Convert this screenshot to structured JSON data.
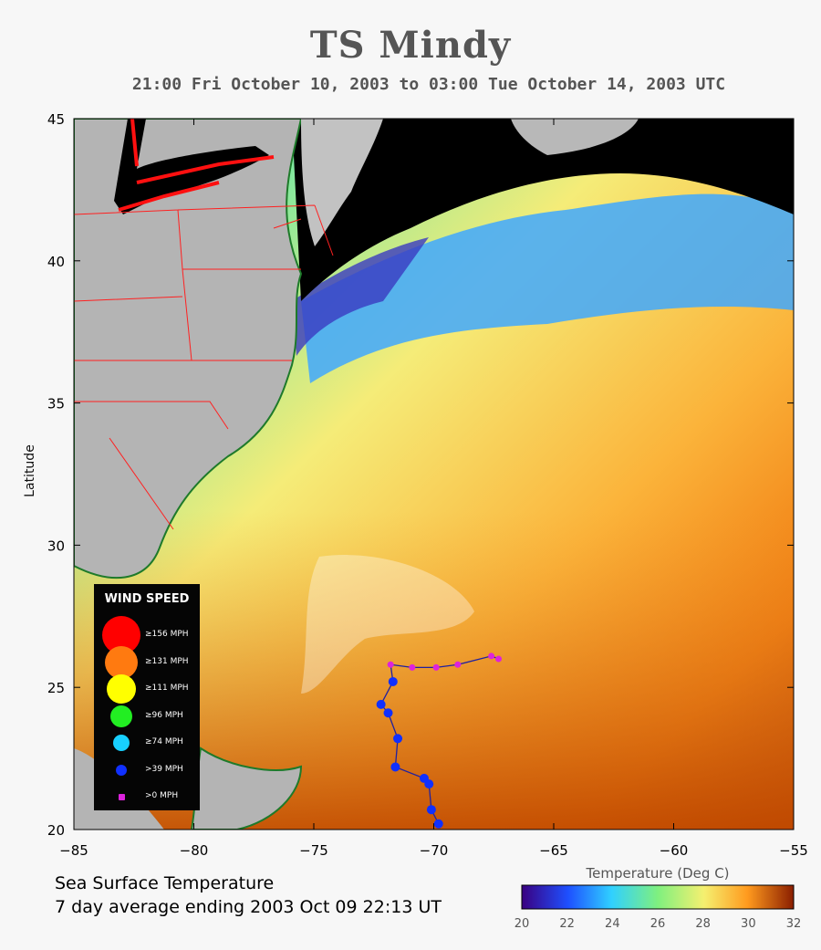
{
  "header": {
    "title": "TS Mindy",
    "subtitle": "21:00 Fri October 10, 2003 to 03:00 Tue October 14, 2003  UTC"
  },
  "axes": {
    "y_title": "Latitude",
    "lon_ticks": [
      "−85",
      "−80",
      "−75",
      "−70",
      "−65",
      "−60",
      "−55"
    ],
    "lat_ticks": [
      "45",
      "40",
      "35",
      "30",
      "25",
      "20"
    ],
    "lon_range": [
      -85,
      -55
    ],
    "lat_range": [
      20,
      45
    ]
  },
  "footer": {
    "line1": "Sea Surface Temperature",
    "line2": "7 day average ending 2003 Oct 09 22:13 UT"
  },
  "colorbar": {
    "title": "Temperature (Deg C)",
    "ticks": [
      "20",
      "22",
      "24",
      "26",
      "28",
      "30",
      "32"
    ],
    "range": [
      20,
      32
    ],
    "colors": [
      "#3a0080",
      "#1e50ff",
      "#30d0ff",
      "#7ff07f",
      "#f5f070",
      "#ff9a1e",
      "#8a1e00"
    ]
  },
  "legend": {
    "title": "WIND SPEED",
    "items": [
      {
        "label": "≥156 MPH",
        "color": "#ff0000"
      },
      {
        "label": "≥131 MPH",
        "color": "#ff7a10"
      },
      {
        "label": "≥111 MPH",
        "color": "#ffff00"
      },
      {
        "label": "≥96 MPH",
        "color": "#22ee22"
      },
      {
        "label": "≥74 MPH",
        "color": "#18d0ff"
      },
      {
        "label": ">39 MPH",
        "color": "#1030ff"
      },
      {
        "label": ">0 MPH",
        "color": "#dd22dd"
      }
    ]
  },
  "storm_track": [
    {
      "lon": -69.8,
      "lat": 20.2,
      "category": ">39 MPH"
    },
    {
      "lon": -70.1,
      "lat": 20.7,
      "category": ">39 MPH"
    },
    {
      "lon": -70.2,
      "lat": 21.6,
      "category": ">39 MPH"
    },
    {
      "lon": -70.4,
      "lat": 21.8,
      "category": ">39 MPH"
    },
    {
      "lon": -71.6,
      "lat": 22.2,
      "category": ">39 MPH"
    },
    {
      "lon": -71.5,
      "lat": 23.2,
      "category": ">39 MPH"
    },
    {
      "lon": -71.9,
      "lat": 24.1,
      "category": ">39 MPH"
    },
    {
      "lon": -72.2,
      "lat": 24.4,
      "category": ">39 MPH"
    },
    {
      "lon": -71.7,
      "lat": 25.2,
      "category": ">39 MPH"
    },
    {
      "lon": -71.8,
      "lat": 25.8,
      "category": ">0 MPH"
    },
    {
      "lon": -70.9,
      "lat": 25.7,
      "category": ">0 MPH"
    },
    {
      "lon": -69.9,
      "lat": 25.7,
      "category": ">0 MPH"
    },
    {
      "lon": -69.0,
      "lat": 25.8,
      "category": ">0 MPH"
    },
    {
      "lon": -67.6,
      "lat": 26.1,
      "category": ">0 MPH"
    },
    {
      "lon": -67.3,
      "lat": 26.0,
      "category": ">0 MPH"
    }
  ]
}
